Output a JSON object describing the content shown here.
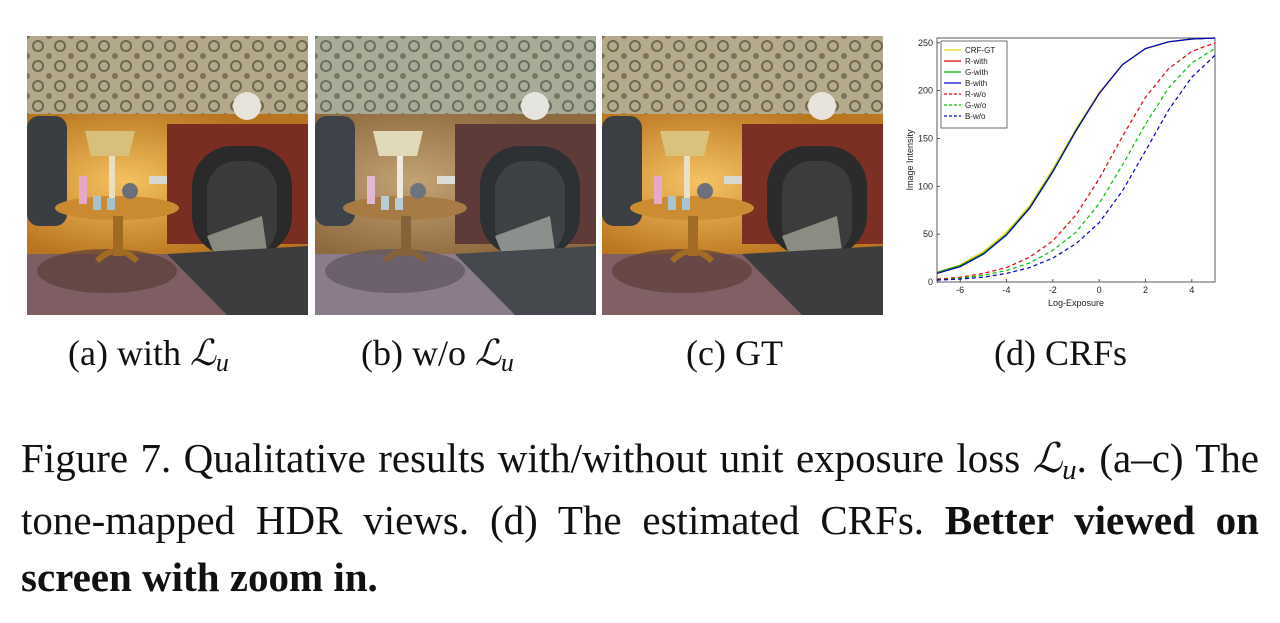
{
  "subfigures": [
    {
      "id": "a",
      "prefix": "(a) with ",
      "math": "ℒ",
      "sub": "u"
    },
    {
      "id": "b",
      "prefix": "(b) w/o ",
      "math": "ℒ",
      "sub": "u"
    },
    {
      "id": "c",
      "prefix": "(c) GT",
      "math": "",
      "sub": ""
    },
    {
      "id": "d",
      "prefix": "(d) CRFs",
      "math": "",
      "sub": ""
    }
  ],
  "caption": {
    "line1_text": "Figure 7. Qualitative results with/without unit exposure loss ",
    "line1_math": "ℒ",
    "line1_sub": "u",
    "line1_end": ".",
    "line2_text": " (a–c) The tone-mapped HDR views. (d) The estimated CRFs. ",
    "bold_text": "Better viewed on screen with zoom in."
  },
  "chart_data": {
    "type": "line",
    "title": "",
    "xlabel": "Log-Exposure",
    "ylabel": "Image Intensity",
    "xlim": [
      -7,
      5
    ],
    "ylim": [
      0,
      255
    ],
    "xticks": [
      -6,
      -4,
      -2,
      0,
      2,
      4
    ],
    "yticks": [
      0,
      50,
      100,
      150,
      200,
      250
    ],
    "legend_position": "top-left",
    "grid": false,
    "x": [
      -7,
      -6,
      -5,
      -4,
      -3,
      -2,
      -1,
      0,
      1,
      2,
      3,
      4,
      5
    ],
    "series": [
      {
        "name": "CRF-GT",
        "color": "#f2d600",
        "dash": false,
        "values": [
          10,
          18,
          32,
          52,
          80,
          118,
          160,
          198,
          227,
          244,
          251,
          254,
          255
        ]
      },
      {
        "name": "R-with",
        "color": "#e00000",
        "dash": false,
        "values": [
          10,
          17,
          30,
          50,
          78,
          116,
          158,
          197,
          227,
          244,
          251,
          254,
          255
        ]
      },
      {
        "name": "G-with",
        "color": "#00b000",
        "dash": false,
        "values": [
          10,
          17,
          30,
          50,
          78,
          116,
          159,
          197,
          227,
          244,
          251,
          254,
          255
        ]
      },
      {
        "name": "B-with",
        "color": "#0000d0",
        "dash": false,
        "values": [
          9,
          16,
          29,
          49,
          77,
          115,
          158,
          197,
          227,
          244,
          251,
          254,
          255
        ]
      },
      {
        "name": "R-w/o",
        "color": "#e00000",
        "dash": true,
        "values": [
          3,
          5,
          9,
          15,
          26,
          43,
          70,
          108,
          152,
          193,
          223,
          241,
          250
        ]
      },
      {
        "name": "G-w/o",
        "color": "#00c000",
        "dash": true,
        "values": [
          2,
          4,
          7,
          12,
          20,
          33,
          52,
          82,
          122,
          165,
          203,
          229,
          244
        ]
      },
      {
        "name": "B-w/o",
        "color": "#0000d0",
        "dash": true,
        "values": [
          2,
          3,
          5,
          9,
          15,
          25,
          40,
          62,
          95,
          137,
          180,
          214,
          237
        ]
      }
    ]
  }
}
